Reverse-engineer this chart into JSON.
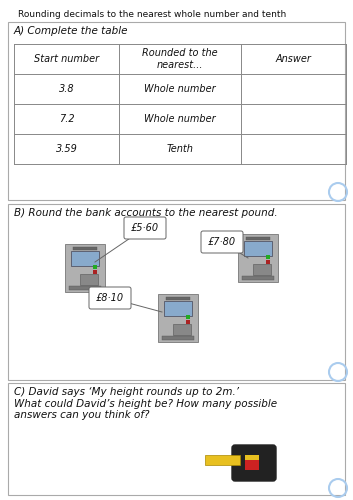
{
  "title": "Rounding decimals to the nearest whole number and tenth",
  "section_a_title": "A) Complete the table",
  "table_headers": [
    "Start number",
    "Rounded to the\nnearest...",
    "Answer"
  ],
  "table_rows": [
    [
      "3.8",
      "Whole number",
      ""
    ],
    [
      "7.2",
      "Whole number",
      ""
    ],
    [
      "3.59",
      "Tenth",
      ""
    ]
  ],
  "section_b_title": "B) Round the bank accounts to the nearest pound.",
  "atm_labels": [
    "£5·60",
    "£7·80",
    "£8·10"
  ],
  "section_c_title": "C) David says ‘My height rounds up to 2m.’\nWhat could David’s height be? How many possible\nanswers can you think of?",
  "bg_color": "#ffffff",
  "border_color": "#888888",
  "text_color": "#111111",
  "table_line_color": "#888888",
  "circle_color": "#aaccee",
  "font_size_title": 6.5,
  "font_size_section": 7.5,
  "font_size_table": 7,
  "font_size_atm": 7
}
